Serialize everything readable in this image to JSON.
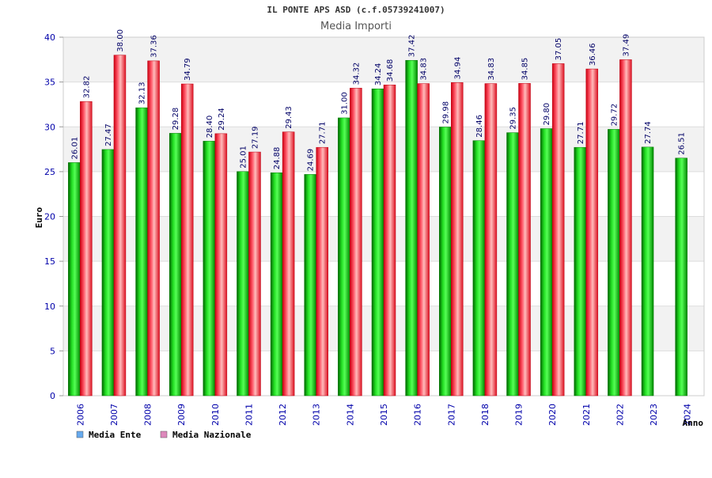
{
  "chart_data": {
    "type": "bar",
    "title": "IL PONTE APS ASD (c.f.05739241007)",
    "subtitle": "Media Importi",
    "ylabel": "Euro",
    "xlabel": "Anno",
    "ylim": [
      0,
      40
    ],
    "yticks": [
      0,
      5,
      10,
      15,
      20,
      25,
      30,
      35,
      40
    ],
    "grid": true,
    "legend_position": "bottom-left",
    "categories": [
      "2006",
      "2007",
      "2008",
      "2009",
      "2010",
      "2011",
      "2012",
      "2013",
      "2014",
      "2015",
      "2016",
      "2017",
      "2018",
      "2019",
      "2020",
      "2021",
      "2022",
      "2023",
      "2024"
    ],
    "series": [
      {
        "name": "Media Ente",
        "color": "#00aa00",
        "legend_color": "#66aaee",
        "values": [
          26.01,
          27.47,
          32.13,
          29.28,
          28.4,
          25.01,
          24.88,
          24.69,
          31.0,
          34.24,
          37.42,
          29.98,
          28.46,
          29.35,
          29.8,
          27.71,
          29.72,
          27.74,
          26.51
        ],
        "labels": [
          "26.01",
          "27.47",
          "32.13",
          "29.28",
          "28.40",
          "25.01",
          "24.88",
          "24.69",
          "31.00",
          "34.24",
          "37.42",
          "29.98",
          "28.46",
          "29.35",
          "29.80",
          "27.71",
          "29.72",
          "27.74",
          "26.51"
        ]
      },
      {
        "name": "Media Nazionale",
        "color": "#ee1c2a",
        "legend_color": "#dd88bb",
        "values": [
          32.82,
          38.0,
          37.36,
          34.79,
          29.24,
          27.19,
          29.43,
          27.71,
          34.32,
          34.68,
          34.83,
          34.94,
          34.83,
          34.85,
          37.05,
          36.46,
          37.49,
          null,
          null
        ],
        "labels": [
          "32.82",
          "38.00",
          "37.36",
          "34.79",
          "29.24",
          "27.19",
          "29.43",
          "27.71",
          "34.32",
          "34.68",
          "34.83",
          "34.94",
          "34.83",
          "34.85",
          "37.05",
          "36.46",
          "37.49",
          "",
          ""
        ]
      }
    ]
  }
}
